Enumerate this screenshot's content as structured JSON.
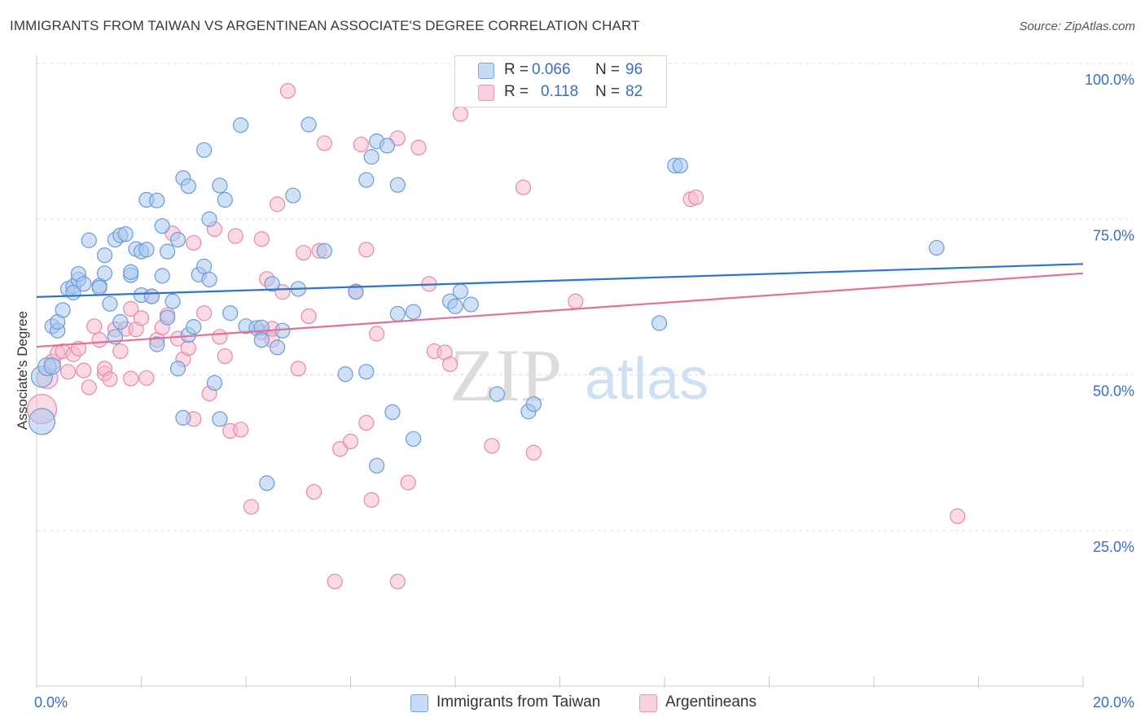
{
  "title": "IMMIGRANTS FROM TAIWAN VS ARGENTINEAN ASSOCIATE'S DEGREE CORRELATION CHART",
  "source": "Source: ZipAtlas.com",
  "watermark": {
    "zip": "ZIP",
    "atlas": "atlas"
  },
  "colors": {
    "blue_fill": "#a9c8ef",
    "blue_stroke": "#6b9bd8",
    "blue_line": "#2f74d0",
    "pink_fill": "#f6bccd",
    "pink_stroke": "#e98aa9",
    "pink_line": "#e46f98",
    "tick_label": "#3a6ec4",
    "grid": "#dddddd"
  },
  "legend": {
    "row1": {
      "r_label": "R =",
      "r_value": "0.066",
      "n_label": "N =",
      "n_value": "96"
    },
    "row2": {
      "r_label": "R =",
      "r_value": "0.118",
      "n_label": "N =",
      "n_value": "82"
    }
  },
  "bottom_legend": {
    "series1": "Immigrants from Taiwan",
    "series2": "Argentineans"
  },
  "chart_data": {
    "type": "scatter",
    "xlabel": "",
    "ylabel": "Associate's Degree",
    "xlim": [
      0,
      20
    ],
    "ylim": [
      0,
      100
    ],
    "x_tick_labels": [
      "0.0%",
      "20.0%"
    ],
    "y_ticks": [
      25,
      50,
      75,
      100
    ],
    "y_tick_labels": [
      "25.0%",
      "50.0%",
      "75.0%",
      "100.0%"
    ],
    "grid": true,
    "legend_position": "top-center",
    "series": [
      {
        "name": "Immigrants from Taiwan",
        "color": "#a9c8ef",
        "trend": {
          "x0": 0,
          "y0": 62.5,
          "x1": 20,
          "y1": 67.8
        },
        "points": [
          [
            0.1,
            42.5,
            16
          ],
          [
            0.1,
            49.7,
            13
          ],
          [
            0.2,
            51.3,
            11
          ],
          [
            0.3,
            51.4,
            10
          ],
          [
            0.3,
            57.8,
            9
          ],
          [
            0.4,
            57.1,
            9
          ],
          [
            0.4,
            58.5,
            9
          ],
          [
            0.5,
            60.4,
            9
          ],
          [
            0.6,
            63.8,
            9
          ],
          [
            0.7,
            64.2,
            9
          ],
          [
            0.7,
            63.2,
            9
          ],
          [
            0.8,
            65.3,
            9
          ],
          [
            0.8,
            66.2,
            9
          ],
          [
            0.9,
            64.6,
            9
          ],
          [
            1.0,
            71.6,
            9
          ],
          [
            1.2,
            64.3,
            9
          ],
          [
            1.2,
            64.0,
            9
          ],
          [
            1.3,
            66.3,
            9
          ],
          [
            1.3,
            69.2,
            9
          ],
          [
            1.4,
            61.4,
            9
          ],
          [
            1.5,
            56.1,
            9
          ],
          [
            1.5,
            71.7,
            9
          ],
          [
            1.6,
            58.5,
            9
          ],
          [
            1.6,
            72.4,
            9
          ],
          [
            1.7,
            72.6,
            9
          ],
          [
            1.8,
            66.0,
            9
          ],
          [
            1.8,
            66.5,
            9
          ],
          [
            1.9,
            70.2,
            9
          ],
          [
            2.0,
            69.8,
            9
          ],
          [
            2.0,
            62.8,
            9
          ],
          [
            2.1,
            70.1,
            9
          ],
          [
            2.1,
            78.1,
            9
          ],
          [
            2.2,
            62.6,
            9
          ],
          [
            2.3,
            78.0,
            9
          ],
          [
            2.3,
            54.9,
            9
          ],
          [
            2.4,
            73.9,
            9
          ],
          [
            2.4,
            65.9,
            9
          ],
          [
            2.5,
            69.8,
            9
          ],
          [
            2.5,
            59.2,
            9
          ],
          [
            2.6,
            61.8,
            9
          ],
          [
            2.7,
            51.0,
            9
          ],
          [
            2.7,
            71.7,
            9
          ],
          [
            2.8,
            81.6,
            9
          ],
          [
            2.8,
            43.1,
            9
          ],
          [
            2.9,
            80.3,
            9
          ],
          [
            2.9,
            56.4,
            9
          ],
          [
            3.0,
            57.7,
            9
          ],
          [
            3.1,
            66.1,
            9
          ],
          [
            3.2,
            67.4,
            9
          ],
          [
            3.2,
            86.1,
            9
          ],
          [
            3.3,
            75.0,
            9
          ],
          [
            3.3,
            65.3,
            9
          ],
          [
            3.4,
            48.7,
            9
          ],
          [
            3.5,
            42.9,
            9
          ],
          [
            3.5,
            80.4,
            9
          ],
          [
            3.6,
            78.1,
            9
          ],
          [
            3.7,
            59.9,
            9
          ],
          [
            3.9,
            90.1,
            9
          ],
          [
            4.0,
            57.8,
            9
          ],
          [
            4.2,
            57.5,
            9
          ],
          [
            4.3,
            57.6,
            9
          ],
          [
            4.3,
            55.6,
            9
          ],
          [
            4.4,
            32.6,
            9
          ],
          [
            4.5,
            64.6,
            9
          ],
          [
            4.6,
            54.4,
            9
          ],
          [
            4.7,
            57.1,
            9
          ],
          [
            4.9,
            78.8,
            9
          ],
          [
            5.0,
            63.8,
            9
          ],
          [
            5.2,
            90.2,
            9
          ],
          [
            5.5,
            69.9,
            9
          ],
          [
            5.9,
            50.1,
            9
          ],
          [
            6.1,
            63.3,
            9
          ],
          [
            6.3,
            50.5,
            9
          ],
          [
            6.3,
            81.3,
            9
          ],
          [
            6.4,
            85.0,
            9
          ],
          [
            6.5,
            87.5,
            9
          ],
          [
            6.5,
            35.4,
            9
          ],
          [
            6.7,
            86.8,
            9
          ],
          [
            6.8,
            44.0,
            9
          ],
          [
            6.9,
            59.8,
            9
          ],
          [
            6.9,
            80.5,
            9
          ],
          [
            7.2,
            60.1,
            9
          ],
          [
            7.2,
            39.7,
            9
          ],
          [
            7.9,
            61.8,
            9
          ],
          [
            8.0,
            61.0,
            9
          ],
          [
            8.1,
            63.4,
            9
          ],
          [
            8.3,
            61.3,
            9
          ],
          [
            8.8,
            46.9,
            9
          ],
          [
            9.4,
            44.1,
            9
          ],
          [
            9.5,
            45.3,
            9
          ],
          [
            11.9,
            58.3,
            9
          ],
          [
            12.2,
            83.6,
            9
          ],
          [
            12.3,
            83.6,
            9
          ],
          [
            17.2,
            70.4,
            9
          ]
        ]
      },
      {
        "name": "Argentineans",
        "color": "#f6bccd",
        "trend": {
          "x0": 0,
          "y0": 54.5,
          "x1": 20,
          "y1": 66.3
        },
        "points": [
          [
            0.1,
            44.5,
            18
          ],
          [
            0.2,
            49.5,
            13
          ],
          [
            0.3,
            52.0,
            10
          ],
          [
            0.4,
            53.5,
            9
          ],
          [
            0.5,
            53.8,
            9
          ],
          [
            0.6,
            50.5,
            9
          ],
          [
            0.7,
            53.3,
            9
          ],
          [
            0.8,
            54.2,
            9
          ],
          [
            0.9,
            50.7,
            9
          ],
          [
            1.0,
            48.0,
            9
          ],
          [
            1.1,
            57.8,
            9
          ],
          [
            1.2,
            55.6,
            9
          ],
          [
            1.3,
            50.2,
            9
          ],
          [
            1.3,
            51.0,
            9
          ],
          [
            1.4,
            49.3,
            9
          ],
          [
            1.5,
            57.3,
            9
          ],
          [
            1.6,
            53.8,
            9
          ],
          [
            1.7,
            57.4,
            9
          ],
          [
            1.8,
            49.4,
            9
          ],
          [
            1.8,
            60.6,
            9
          ],
          [
            1.9,
            57.3,
            9
          ],
          [
            2.0,
            59.1,
            9
          ],
          [
            2.1,
            49.5,
            9
          ],
          [
            2.2,
            62.6,
            9
          ],
          [
            2.3,
            55.6,
            9
          ],
          [
            2.4,
            57.6,
            9
          ],
          [
            2.5,
            59.6,
            9
          ],
          [
            2.6,
            72.7,
            9
          ],
          [
            2.7,
            55.8,
            9
          ],
          [
            2.8,
            52.5,
            9
          ],
          [
            2.9,
            54.3,
            9
          ],
          [
            3.0,
            71.2,
            9
          ],
          [
            3.0,
            42.9,
            9
          ],
          [
            3.2,
            59.9,
            9
          ],
          [
            3.3,
            47.0,
            9
          ],
          [
            3.4,
            73.4,
            9
          ],
          [
            3.5,
            56.1,
            9
          ],
          [
            3.6,
            53.0,
            9
          ],
          [
            3.7,
            41.0,
            9
          ],
          [
            3.8,
            72.3,
            9
          ],
          [
            3.9,
            41.2,
            9
          ],
          [
            4.1,
            28.8,
            9
          ],
          [
            4.3,
            56.8,
            9
          ],
          [
            4.3,
            71.8,
            9
          ],
          [
            4.4,
            65.4,
            9
          ],
          [
            4.5,
            55.6,
            9
          ],
          [
            4.5,
            57.4,
            9
          ],
          [
            4.6,
            77.4,
            9
          ],
          [
            4.7,
            63.3,
            9
          ],
          [
            4.8,
            95.6,
            9
          ],
          [
            5.0,
            51.0,
            9
          ],
          [
            5.1,
            69.6,
            9
          ],
          [
            5.2,
            59.4,
            9
          ],
          [
            5.3,
            31.2,
            9
          ],
          [
            5.4,
            69.9,
            9
          ],
          [
            5.5,
            87.2,
            9
          ],
          [
            5.7,
            16.8,
            9
          ],
          [
            5.8,
            38.1,
            9
          ],
          [
            6.0,
            39.3,
            9
          ],
          [
            6.1,
            63.4,
            9
          ],
          [
            6.2,
            87.0,
            9
          ],
          [
            6.3,
            42.3,
            9
          ],
          [
            6.3,
            70.1,
            9
          ],
          [
            6.4,
            29.9,
            9
          ],
          [
            6.5,
            56.6,
            9
          ],
          [
            6.9,
            88.0,
            9
          ],
          [
            6.9,
            16.8,
            9
          ],
          [
            7.1,
            32.7,
            9
          ],
          [
            7.3,
            86.5,
            9
          ],
          [
            7.5,
            64.6,
            9
          ],
          [
            7.6,
            53.8,
            9
          ],
          [
            7.8,
            53.6,
            9
          ],
          [
            7.9,
            51.7,
            9
          ],
          [
            8.1,
            91.9,
            9
          ],
          [
            8.7,
            38.6,
            9
          ],
          [
            9.3,
            80.1,
            9
          ],
          [
            9.5,
            37.5,
            9
          ],
          [
            10.3,
            61.8,
            9
          ],
          [
            12.5,
            78.2,
            9
          ],
          [
            12.6,
            78.5,
            9
          ],
          [
            17.6,
            27.3,
            9
          ]
        ]
      }
    ]
  }
}
